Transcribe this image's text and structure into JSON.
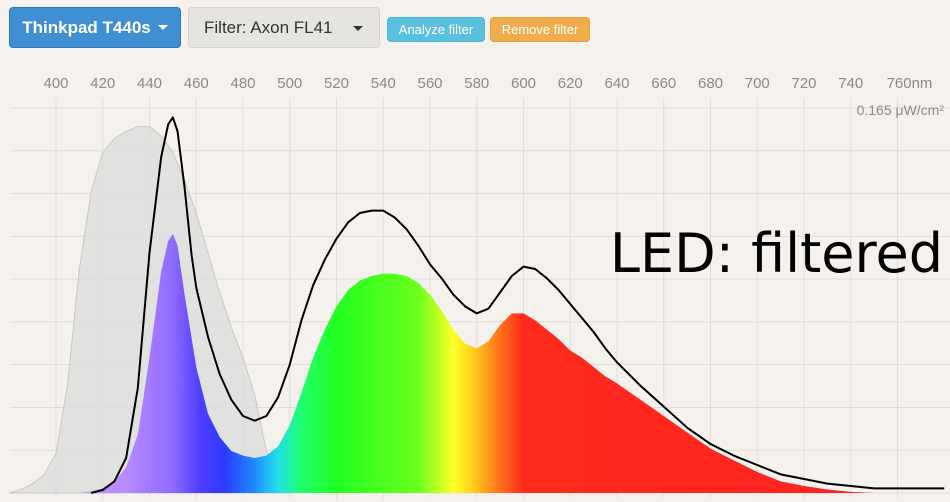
{
  "toolbar": {
    "device_label": "Thinkpad T440s",
    "filter_label": "Filter: Axon FL41",
    "analyze_label": "Analyze filter",
    "remove_label": "Remove filter"
  },
  "colors": {
    "device_button": "#3f8fd2",
    "analyze_button": "#5bc0de",
    "remove_button": "#f0ad4e",
    "background": "#f5f2ee",
    "grid": "#e2ddd8",
    "unfiltered_fill": "#dcdcdc",
    "total_line": "#000000"
  },
  "chart_data": {
    "type": "area",
    "title": "",
    "annotation": "LED: filtered",
    "xlabel": "",
    "ylabel": "",
    "x_unit": "nm",
    "y_max_label": "0.165 μW/cm²",
    "y_max": 0.165,
    "xlim": [
      380,
      780
    ],
    "ylim": [
      0,
      0.165
    ],
    "grid": true,
    "x_ticks": [
      "400",
      "420",
      "440",
      "460",
      "480",
      "500",
      "520",
      "540",
      "560",
      "580",
      "600",
      "620",
      "640",
      "660",
      "680",
      "700",
      "720",
      "740",
      "760nm"
    ],
    "series": [
      {
        "role": "unfiltered",
        "style": "gray-filled",
        "x": [
          380,
          385,
          390,
          395,
          400,
          405,
          410,
          415,
          420,
          425,
          430,
          435,
          440,
          445,
          450,
          455,
          460,
          465,
          470,
          475,
          480,
          485,
          490,
          495,
          500
        ],
        "y": [
          0,
          0.0015,
          0.004,
          0.008,
          0.017,
          0.047,
          0.096,
          0.129,
          0.146,
          0.152,
          0.155,
          0.157,
          0.157,
          0.153,
          0.146,
          0.134,
          0.12,
          0.103,
          0.086,
          0.071,
          0.058,
          0.042,
          0.018,
          0.005,
          0
        ]
      },
      {
        "role": "filtered",
        "style": "spectrum-filled",
        "x": [
          410,
          415,
          420,
          425,
          430,
          435,
          440,
          445,
          448,
          450,
          452,
          455,
          460,
          465,
          470,
          475,
          480,
          485,
          490,
          495,
          500,
          505,
          510,
          515,
          520,
          525,
          530,
          535,
          540,
          545,
          550,
          555,
          560,
          565,
          570,
          575,
          580,
          585,
          590,
          595,
          600,
          605,
          610,
          615,
          620,
          625,
          630,
          635,
          640,
          650,
          660,
          670,
          680,
          690,
          700,
          710,
          720,
          730,
          740,
          750
        ],
        "y": [
          0,
          0.0007,
          0.002,
          0.005,
          0.011,
          0.025,
          0.058,
          0.095,
          0.108,
          0.111,
          0.106,
          0.085,
          0.054,
          0.034,
          0.024,
          0.018,
          0.016,
          0.015,
          0.016,
          0.02,
          0.029,
          0.043,
          0.058,
          0.07,
          0.08,
          0.087,
          0.091,
          0.093,
          0.094,
          0.094,
          0.093,
          0.09,
          0.085,
          0.078,
          0.07,
          0.064,
          0.062,
          0.065,
          0.072,
          0.077,
          0.077,
          0.074,
          0.07,
          0.066,
          0.061,
          0.058,
          0.054,
          0.05,
          0.047,
          0.04,
          0.033,
          0.026,
          0.019,
          0.014,
          0.009,
          0.005,
          0.003,
          0.0015,
          0.0005,
          0
        ]
      },
      {
        "role": "total",
        "style": "black-line",
        "x": [
          415,
          420,
          425,
          430,
          435,
          440,
          445,
          448,
          450,
          452,
          455,
          458,
          460,
          465,
          470,
          475,
          480,
          485,
          490,
          495,
          500,
          505,
          510,
          515,
          520,
          525,
          530,
          535,
          540,
          545,
          550,
          555,
          560,
          565,
          570,
          575,
          580,
          585,
          590,
          595,
          600,
          605,
          610,
          615,
          620,
          625,
          630,
          635,
          640,
          650,
          660,
          670,
          680,
          690,
          700,
          710,
          720,
          730,
          740,
          750,
          760,
          770,
          780
        ],
        "y": [
          0,
          0.0013,
          0.005,
          0.015,
          0.045,
          0.103,
          0.144,
          0.158,
          0.161,
          0.155,
          0.131,
          0.102,
          0.088,
          0.067,
          0.051,
          0.04,
          0.033,
          0.031,
          0.033,
          0.041,
          0.055,
          0.074,
          0.089,
          0.1,
          0.109,
          0.116,
          0.12,
          0.121,
          0.121,
          0.118,
          0.113,
          0.106,
          0.098,
          0.092,
          0.085,
          0.08,
          0.077,
          0.079,
          0.086,
          0.093,
          0.097,
          0.096,
          0.092,
          0.087,
          0.081,
          0.075,
          0.069,
          0.062,
          0.056,
          0.046,
          0.037,
          0.028,
          0.021,
          0.016,
          0.012,
          0.008,
          0.006,
          0.004,
          0.003,
          0.002,
          0.002,
          0.002,
          0.002
        ]
      }
    ]
  }
}
